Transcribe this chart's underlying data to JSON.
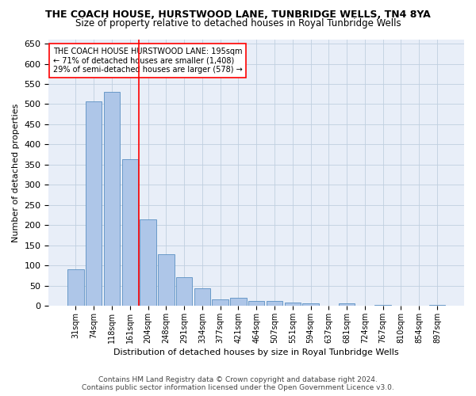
{
  "title": "THE COACH HOUSE, HURSTWOOD LANE, TUNBRIDGE WELLS, TN4 8YA",
  "subtitle": "Size of property relative to detached houses in Royal Tunbridge Wells",
  "xlabel": "Distribution of detached houses by size in Royal Tunbridge Wells",
  "ylabel": "Number of detached properties",
  "footer1": "Contains HM Land Registry data © Crown copyright and database right 2024.",
  "footer2": "Contains public sector information licensed under the Open Government Licence v3.0.",
  "categories": [
    "31sqm",
    "74sqm",
    "118sqm",
    "161sqm",
    "204sqm",
    "248sqm",
    "291sqm",
    "334sqm",
    "377sqm",
    "421sqm",
    "464sqm",
    "507sqm",
    "551sqm",
    "594sqm",
    "637sqm",
    "681sqm",
    "724sqm",
    "767sqm",
    "810sqm",
    "854sqm",
    "897sqm"
  ],
  "values": [
    90,
    507,
    530,
    363,
    215,
    127,
    70,
    43,
    16,
    20,
    12,
    12,
    8,
    5,
    0,
    5,
    0,
    3,
    0,
    0,
    3
  ],
  "bar_color": "#aec6e8",
  "bar_edge_color": "#5a8fc2",
  "vline_x_index": 3.5,
  "vline_color": "red",
  "annotation_text": "THE COACH HOUSE HURSTWOOD LANE: 195sqm\n← 71% of detached houses are smaller (1,408)\n29% of semi-detached houses are larger (578) →",
  "annotation_box_color": "white",
  "annotation_box_edge_color": "red",
  "ylim": [
    0,
    660
  ],
  "yticks": [
    0,
    50,
    100,
    150,
    200,
    250,
    300,
    350,
    400,
    450,
    500,
    550,
    600,
    650
  ],
  "background_color": "#e8eef8",
  "plot_background": "white",
  "grid_color": "#c0cfe0",
  "title_fontsize": 9,
  "subtitle_fontsize": 8.5
}
